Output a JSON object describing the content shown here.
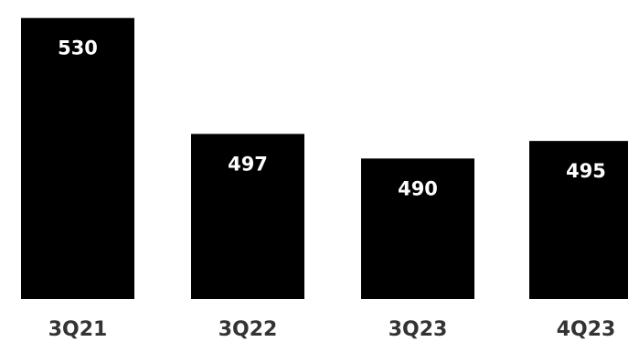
{
  "chart_data": {
    "type": "bar",
    "categories": [
      "3Q21",
      "3Q22",
      "3Q23",
      "4Q23"
    ],
    "values": [
      530,
      497,
      490,
      495
    ],
    "title": "",
    "xlabel": "",
    "ylabel": "",
    "ylim": [
      450,
      532
    ],
    "grid": false,
    "legend": "none",
    "data_labels": [
      "530",
      "497",
      "490",
      "495"
    ],
    "bar_color": "#000000",
    "data_label_color": "#ffffff",
    "tick_label_color": "#333333"
  }
}
